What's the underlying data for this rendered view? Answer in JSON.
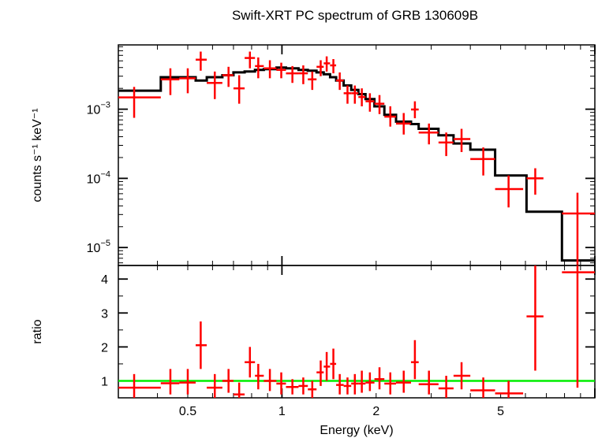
{
  "chart_data": [
    {
      "type": "line",
      "title": "Swift-XRT PC spectrum of GRB 130609B",
      "xlabel": "",
      "ylabel": "counts s⁻¹ keV⁻¹",
      "x_scale": "log",
      "y_scale": "log",
      "xlim": [
        0.3,
        10
      ],
      "ylim": [
        5.5e-06,
        0.0085
      ],
      "y_tick_labels": [
        {
          "value": 0.001,
          "mantissa": "10",
          "exponent": "−3"
        },
        {
          "value": 0.0001,
          "mantissa": "10",
          "exponent": "−4"
        },
        {
          "value": 1e-05,
          "mantissa": "10",
          "exponent": "−5"
        }
      ],
      "colors": {
        "data": "#ff0000",
        "model": "#000000"
      },
      "series": [
        {
          "kind": "data_with_errors",
          "points": [
            {
              "x": 0.337,
              "xlo": 0.3,
              "xhi": 0.41,
              "y": 0.00148,
              "ylo": 0.00075,
              "yhi": 0.0021
            },
            {
              "x": 0.44,
              "xlo": 0.41,
              "xhi": 0.47,
              "y": 0.0027,
              "ylo": 0.0016,
              "yhi": 0.0039
            },
            {
              "x": 0.5,
              "xlo": 0.47,
              "xhi": 0.53,
              "y": 0.0028,
              "ylo": 0.0017,
              "yhi": 0.0039
            },
            {
              "x": 0.55,
              "xlo": 0.53,
              "xhi": 0.575,
              "y": 0.0052,
              "ylo": 0.0036,
              "yhi": 0.0068
            },
            {
              "x": 0.61,
              "xlo": 0.575,
              "xhi": 0.645,
              "y": 0.0024,
              "ylo": 0.0014,
              "yhi": 0.0035
            },
            {
              "x": 0.675,
              "xlo": 0.645,
              "xhi": 0.7,
              "y": 0.0031,
              "ylo": 0.0021,
              "yhi": 0.0041
            },
            {
              "x": 0.73,
              "xlo": 0.7,
              "xhi": 0.76,
              "y": 0.002,
              "ylo": 0.0012,
              "yhi": 0.0031
            },
            {
              "x": 0.79,
              "xlo": 0.76,
              "xhi": 0.82,
              "y": 0.0055,
              "ylo": 0.0039,
              "yhi": 0.0068
            },
            {
              "x": 0.84,
              "xlo": 0.82,
              "xhi": 0.875,
              "y": 0.0042,
              "ylo": 0.0028,
              "yhi": 0.0056
            },
            {
              "x": 0.915,
              "xlo": 0.875,
              "xhi": 0.96,
              "y": 0.0039,
              "ylo": 0.0028,
              "yhi": 0.0051
            },
            {
              "x": 0.995,
              "xlo": 0.96,
              "xhi": 1.03,
              "y": 0.0037,
              "ylo": 0.0028,
              "yhi": 0.0047
            },
            {
              "x": 1.08,
              "xlo": 1.03,
              "xhi": 1.13,
              "y": 0.0033,
              "ylo": 0.0024,
              "yhi": 0.0042
            },
            {
              "x": 1.17,
              "xlo": 1.13,
              "xhi": 1.21,
              "y": 0.0033,
              "ylo": 0.0023,
              "yhi": 0.0043
            },
            {
              "x": 1.25,
              "xlo": 1.21,
              "xhi": 1.29,
              "y": 0.0027,
              "ylo": 0.0019,
              "yhi": 0.0035
            },
            {
              "x": 1.33,
              "xlo": 1.29,
              "xhi": 1.36,
              "y": 0.0041,
              "ylo": 0.003,
              "yhi": 0.0051
            },
            {
              "x": 1.39,
              "xlo": 1.36,
              "xhi": 1.425,
              "y": 0.0046,
              "ylo": 0.0035,
              "yhi": 0.0058
            },
            {
              "x": 1.46,
              "xlo": 1.425,
              "xhi": 1.49,
              "y": 0.0043,
              "ylo": 0.0033,
              "yhi": 0.0053
            },
            {
              "x": 1.53,
              "xlo": 1.49,
              "xhi": 1.575,
              "y": 0.0026,
              "ylo": 0.0019,
              "yhi": 0.0034
            },
            {
              "x": 1.62,
              "xlo": 1.575,
              "xhi": 1.665,
              "y": 0.0017,
              "ylo": 0.0012,
              "yhi": 0.0022
            },
            {
              "x": 1.71,
              "xlo": 1.665,
              "xhi": 1.755,
              "y": 0.0017,
              "ylo": 0.0012,
              "yhi": 0.0022
            },
            {
              "x": 1.8,
              "xlo": 1.755,
              "xhi": 1.85,
              "y": 0.0015,
              "ylo": 0.0011,
              "yhi": 0.002
            },
            {
              "x": 1.91,
              "xlo": 1.85,
              "xhi": 1.975,
              "y": 0.0013,
              "ylo": 0.00092,
              "yhi": 0.0017
            },
            {
              "x": 2.05,
              "xlo": 1.975,
              "xhi": 2.125,
              "y": 0.0012,
              "ylo": 0.00085,
              "yhi": 0.0016
            },
            {
              "x": 2.22,
              "xlo": 2.125,
              "xhi": 2.315,
              "y": 0.00078,
              "ylo": 0.00056,
              "yhi": 0.0011
            },
            {
              "x": 2.45,
              "xlo": 2.315,
              "xhi": 2.585,
              "y": 0.00062,
              "ylo": 0.00043,
              "yhi": 0.00088
            },
            {
              "x": 2.66,
              "xlo": 2.585,
              "xhi": 2.735,
              "y": 0.00099,
              "ylo": 0.00074,
              "yhi": 0.0013
            },
            {
              "x": 2.95,
              "xlo": 2.735,
              "xhi": 3.165,
              "y": 0.00046,
              "ylo": 0.00031,
              "yhi": 0.00062
            },
            {
              "x": 3.35,
              "xlo": 3.165,
              "xhi": 3.535,
              "y": 0.00033,
              "ylo": 0.00021,
              "yhi": 0.00046
            },
            {
              "x": 3.75,
              "xlo": 3.535,
              "xhi": 4.0,
              "y": 0.00037,
              "ylo": 0.00024,
              "yhi": 0.00052
            },
            {
              "x": 4.4,
              "xlo": 4.0,
              "xhi": 4.8,
              "y": 0.00019,
              "ylo": 0.00011,
              "yhi": 0.00028
            },
            {
              "x": 5.3,
              "xlo": 4.8,
              "xhi": 5.9,
              "y": 7e-05,
              "ylo": 3.8e-05,
              "yhi": 0.00011
            },
            {
              "x": 6.45,
              "xlo": 6.05,
              "xhi": 6.85,
              "y": 0.0001,
              "ylo": 5.8e-05,
              "yhi": 0.00014
            },
            {
              "x": 8.8,
              "xlo": 7.85,
              "xhi": 10.0,
              "y": 3.1e-05,
              "ylo": 5.5e-06,
              "yhi": 6.2e-05
            }
          ]
        },
        {
          "kind": "model_step",
          "points": [
            {
              "xlo": 0.3,
              "xhi": 0.41,
              "y": 0.00185
            },
            {
              "xlo": 0.41,
              "xhi": 0.53,
              "y": 0.0029
            },
            {
              "xlo": 0.53,
              "xhi": 0.575,
              "y": 0.0026
            },
            {
              "xlo": 0.575,
              "xhi": 0.645,
              "y": 0.0029
            },
            {
              "xlo": 0.645,
              "xhi": 0.7,
              "y": 0.0031
            },
            {
              "xlo": 0.7,
              "xhi": 0.76,
              "y": 0.0034
            },
            {
              "xlo": 0.76,
              "xhi": 0.82,
              "y": 0.0035
            },
            {
              "xlo": 0.82,
              "xhi": 0.875,
              "y": 0.0037
            },
            {
              "xlo": 0.875,
              "xhi": 0.96,
              "y": 0.0038
            },
            {
              "xlo": 0.96,
              "xhi": 1.03,
              "y": 0.004
            },
            {
              "xlo": 1.03,
              "xhi": 1.13,
              "y": 0.0039
            },
            {
              "xlo": 1.13,
              "xhi": 1.21,
              "y": 0.0037
            },
            {
              "xlo": 1.21,
              "xhi": 1.29,
              "y": 0.0036
            },
            {
              "xlo": 1.29,
              "xhi": 1.36,
              "y": 0.0034
            },
            {
              "xlo": 1.36,
              "xhi": 1.425,
              "y": 0.0032
            },
            {
              "xlo": 1.425,
              "xhi": 1.49,
              "y": 0.0029
            },
            {
              "xlo": 1.49,
              "xhi": 1.575,
              "y": 0.0026
            },
            {
              "xlo": 1.575,
              "xhi": 1.665,
              "y": 0.0022
            },
            {
              "xlo": 1.665,
              "xhi": 1.755,
              "y": 0.0019
            },
            {
              "xlo": 1.755,
              "xhi": 1.85,
              "y": 0.00165
            },
            {
              "xlo": 1.85,
              "xhi": 1.975,
              "y": 0.0014
            },
            {
              "xlo": 1.975,
              "xhi": 2.125,
              "y": 0.0011
            },
            {
              "xlo": 2.125,
              "xhi": 2.315,
              "y": 0.00083
            },
            {
              "xlo": 2.315,
              "xhi": 2.585,
              "y": 0.00066
            },
            {
              "xlo": 2.585,
              "xhi": 2.735,
              "y": 0.00061
            },
            {
              "xlo": 2.735,
              "xhi": 3.165,
              "y": 0.00052
            },
            {
              "xlo": 3.165,
              "xhi": 3.535,
              "y": 0.00042
            },
            {
              "xlo": 3.535,
              "xhi": 4.0,
              "y": 0.00032
            },
            {
              "xlo": 4.0,
              "xhi": 4.8,
              "y": 0.00026
            },
            {
              "xlo": 4.8,
              "xhi": 6.05,
              "y": 0.00011
            },
            {
              "xlo": 6.05,
              "xhi": 7.85,
              "y": 3.3e-05
            },
            {
              "xlo": 7.85,
              "xhi": 10.0,
              "y": 6.5e-06
            }
          ]
        }
      ]
    },
    {
      "type": "scatter",
      "title": "",
      "xlabel": "Energy (keV)",
      "ylabel": "ratio",
      "x_scale": "log",
      "y_scale": "linear",
      "xlim": [
        0.3,
        10
      ],
      "ylim": [
        0.5,
        4.4
      ],
      "x_ticks": [
        0.5,
        1,
        2,
        5
      ],
      "x_tick_labels": [
        "0.5",
        "1",
        "2",
        "5"
      ],
      "y_ticks": [
        1,
        2,
        3,
        4
      ],
      "y_tick_labels": [
        "1",
        "2",
        "3",
        "4"
      ],
      "reference_line": 1.0,
      "colors": {
        "data": "#ff0000",
        "reference": "#00ee00"
      },
      "series": [
        {
          "kind": "data_with_errors",
          "points": [
            {
              "x": 0.337,
              "xlo": 0.3,
              "xhi": 0.41,
              "y": 0.8,
              "ylo": 0.5,
              "yhi": 1.2
            },
            {
              "x": 0.44,
              "xlo": 0.41,
              "xhi": 0.47,
              "y": 0.93,
              "ylo": 0.6,
              "yhi": 1.35
            },
            {
              "x": 0.5,
              "xlo": 0.47,
              "xhi": 0.53,
              "y": 0.95,
              "ylo": 0.6,
              "yhi": 1.35
            },
            {
              "x": 0.55,
              "xlo": 0.53,
              "xhi": 0.575,
              "y": 2.05,
              "ylo": 1.35,
              "yhi": 2.75
            },
            {
              "x": 0.61,
              "xlo": 0.575,
              "xhi": 0.645,
              "y": 0.8,
              "ylo": 0.5,
              "yhi": 1.2
            },
            {
              "x": 0.675,
              "xlo": 0.645,
              "xhi": 0.7,
              "y": 1.0,
              "ylo": 0.65,
              "yhi": 1.35
            },
            {
              "x": 0.73,
              "xlo": 0.7,
              "xhi": 0.76,
              "y": 0.6,
              "ylo": 0.5,
              "yhi": 0.95
            },
            {
              "x": 0.79,
              "xlo": 0.76,
              "xhi": 0.82,
              "y": 1.55,
              "ylo": 1.1,
              "yhi": 2.0
            },
            {
              "x": 0.84,
              "xlo": 0.82,
              "xhi": 0.875,
              "y": 1.15,
              "ylo": 0.75,
              "yhi": 1.5
            },
            {
              "x": 0.915,
              "xlo": 0.875,
              "xhi": 0.96,
              "y": 1.0,
              "ylo": 0.7,
              "yhi": 1.35
            },
            {
              "x": 0.995,
              "xlo": 0.96,
              "xhi": 1.03,
              "y": 0.92,
              "ylo": 0.6,
              "yhi": 1.25
            },
            {
              "x": 1.08,
              "xlo": 1.03,
              "xhi": 1.13,
              "y": 0.82,
              "ylo": 0.6,
              "yhi": 1.05
            },
            {
              "x": 1.17,
              "xlo": 1.13,
              "xhi": 1.21,
              "y": 0.85,
              "ylo": 0.6,
              "yhi": 1.1
            },
            {
              "x": 1.25,
              "xlo": 1.21,
              "xhi": 1.29,
              "y": 0.75,
              "ylo": 0.5,
              "yhi": 1.0
            },
            {
              "x": 1.33,
              "xlo": 1.29,
              "xhi": 1.36,
              "y": 1.25,
              "ylo": 0.85,
              "yhi": 1.6
            },
            {
              "x": 1.39,
              "xlo": 1.36,
              "xhi": 1.425,
              "y": 1.42,
              "ylo": 1.0,
              "yhi": 1.85
            },
            {
              "x": 1.46,
              "xlo": 1.425,
              "xhi": 1.49,
              "y": 1.5,
              "ylo": 1.05,
              "yhi": 1.95
            },
            {
              "x": 1.53,
              "xlo": 1.49,
              "xhi": 1.575,
              "y": 0.88,
              "ylo": 0.6,
              "yhi": 1.2
            },
            {
              "x": 1.62,
              "xlo": 1.575,
              "xhi": 1.665,
              "y": 0.85,
              "ylo": 0.6,
              "yhi": 1.1
            },
            {
              "x": 1.71,
              "xlo": 1.665,
              "xhi": 1.755,
              "y": 0.92,
              "ylo": 0.6,
              "yhi": 1.2
            },
            {
              "x": 1.8,
              "xlo": 1.755,
              "xhi": 1.85,
              "y": 0.92,
              "ylo": 0.65,
              "yhi": 1.3
            },
            {
              "x": 1.91,
              "xlo": 1.85,
              "xhi": 1.975,
              "y": 0.95,
              "ylo": 0.7,
              "yhi": 1.25
            },
            {
              "x": 2.05,
              "xlo": 1.975,
              "xhi": 2.125,
              "y": 1.05,
              "ylo": 0.75,
              "yhi": 1.4
            },
            {
              "x": 2.22,
              "xlo": 2.125,
              "xhi": 2.315,
              "y": 0.92,
              "ylo": 0.6,
              "yhi": 1.25
            },
            {
              "x": 2.45,
              "xlo": 2.315,
              "xhi": 2.585,
              "y": 0.95,
              "ylo": 0.65,
              "yhi": 1.3
            },
            {
              "x": 2.66,
              "xlo": 2.585,
              "xhi": 2.735,
              "y": 1.55,
              "ylo": 1.05,
              "yhi": 2.2
            },
            {
              "x": 2.95,
              "xlo": 2.735,
              "xhi": 3.165,
              "y": 0.9,
              "ylo": 0.6,
              "yhi": 1.3
            },
            {
              "x": 3.35,
              "xlo": 3.165,
              "xhi": 3.535,
              "y": 0.78,
              "ylo": 0.5,
              "yhi": 1.15
            },
            {
              "x": 3.75,
              "xlo": 3.535,
              "xhi": 4.0,
              "y": 1.15,
              "ylo": 0.75,
              "yhi": 1.55
            },
            {
              "x": 4.4,
              "xlo": 4.0,
              "xhi": 4.8,
              "y": 0.72,
              "ylo": 0.5,
              "yhi": 1.1
            },
            {
              "x": 5.3,
              "xlo": 4.8,
              "xhi": 5.9,
              "y": 0.63,
              "ylo": 0.5,
              "yhi": 1.0
            },
            {
              "x": 6.45,
              "xlo": 6.05,
              "xhi": 6.85,
              "y": 2.9,
              "ylo": 1.3,
              "yhi": 4.4
            },
            {
              "x": 8.8,
              "xlo": 7.85,
              "xhi": 10.0,
              "y": 4.2,
              "ylo": 0.8,
              "yhi": 4.4
            }
          ]
        }
      ]
    }
  ]
}
